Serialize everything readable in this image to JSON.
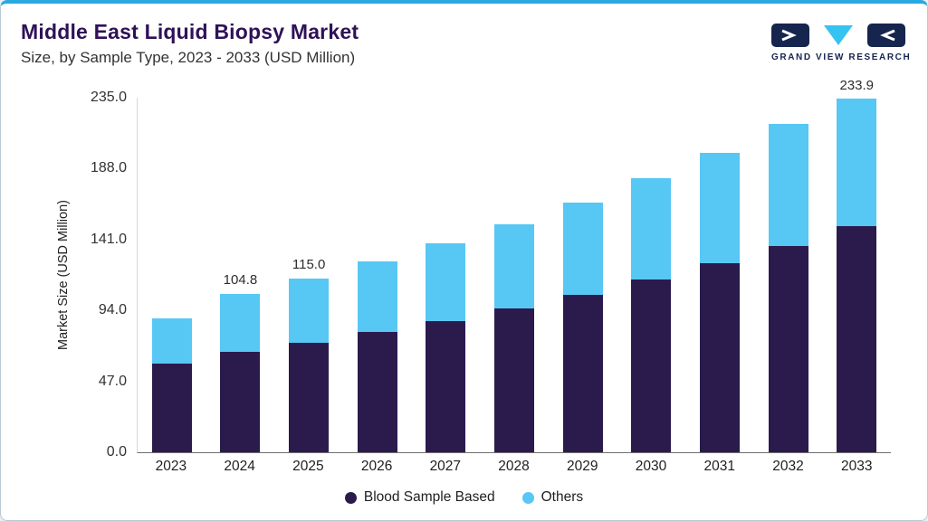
{
  "header": {
    "title": "Middle East Liquid Biopsy Market",
    "subtitle": "Size, by Sample Type, 2023 - 2033 (USD Million)"
  },
  "logo": {
    "brand_text": "GRAND VIEW RESEARCH"
  },
  "chart_data": {
    "type": "bar",
    "stacked": true,
    "title": "Middle East Liquid Biopsy Market Size, by Sample Type, 2023 - 2033 (USD Million)",
    "ylabel": "Market Size (USD Million)",
    "ylim": [
      0,
      235
    ],
    "ytick_labels": [
      "235.0",
      "188.0",
      "141.0",
      "94.0",
      "47.0",
      "0.0"
    ],
    "grid": false,
    "legend_position": "bottom",
    "categories": [
      "2023",
      "2024",
      "2025",
      "2026",
      "2027",
      "2028",
      "2029",
      "2030",
      "2031",
      "2032",
      "2033"
    ],
    "series": [
      {
        "name": "Blood Sample Based",
        "color": "#2B1B4D",
        "values": [
          58.9,
          66.2,
          72.6,
          79.3,
          86.9,
          95.1,
          104.1,
          114.0,
          124.8,
          136.6,
          149.6
        ]
      },
      {
        "name": "Others",
        "color": "#57C7F4",
        "values": [
          29.4,
          38.6,
          42.4,
          46.6,
          51.0,
          55.9,
          61.2,
          67.0,
          73.4,
          80.3,
          84.3
        ]
      }
    ],
    "totals": [
      88.3,
      104.8,
      115.0,
      125.9,
      137.9,
      151.0,
      165.3,
      181.0,
      198.2,
      216.9,
      233.9
    ],
    "value_labels": [
      "",
      "104.8",
      "115.0",
      "",
      "",
      "",
      "",
      "",
      "",
      "",
      "233.9"
    ]
  },
  "colors": {
    "accent_top_border": "#29A9E0",
    "title_text": "#2F1158",
    "blood_sample_based": "#2B1B4D",
    "others": "#57C7F4",
    "logo_navy": "#16254E",
    "logo_cyan": "#35C3F2"
  }
}
